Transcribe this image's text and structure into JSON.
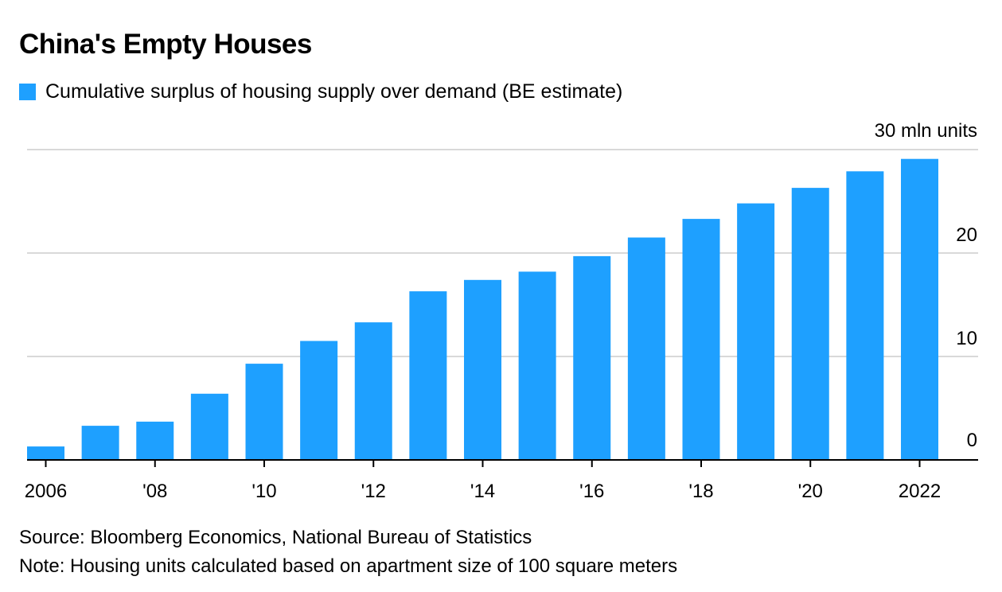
{
  "title": "China's Empty Houses",
  "footer": {
    "source": "Source: Bloomberg Economics, National Bureau of Statistics",
    "note": "Note: Housing units calculated based on apartment size of 100 square meters"
  },
  "colors": {
    "bar": "#1ea0ff",
    "grid": "#d9d9d9",
    "axis": "#000000",
    "text": "#000000"
  },
  "chart_data": {
    "type": "bar",
    "legend": [
      "Cumulative surplus of housing supply over demand (BE estimate)"
    ],
    "legend_position": "top-left",
    "unit_label": "30 mln units",
    "categories": [
      2006,
      2007,
      2008,
      2009,
      2010,
      2011,
      2012,
      2013,
      2014,
      2015,
      2016,
      2017,
      2018,
      2019,
      2020,
      2021,
      2022
    ],
    "series": [
      {
        "name": "Cumulative surplus of housing supply over demand (BE estimate)",
        "values": [
          1.3,
          3.3,
          3.7,
          6.4,
          9.3,
          11.5,
          13.3,
          16.3,
          17.4,
          18.2,
          19.7,
          21.5,
          23.3,
          24.8,
          26.3,
          27.9,
          29.1
        ]
      }
    ],
    "x_tick_labels": [
      {
        "x": 2006,
        "label": "2006"
      },
      {
        "x": 2008,
        "label": "'08"
      },
      {
        "x": 2010,
        "label": "'10"
      },
      {
        "x": 2012,
        "label": "'12"
      },
      {
        "x": 2014,
        "label": "'14"
      },
      {
        "x": 2016,
        "label": "'16"
      },
      {
        "x": 2018,
        "label": "'18"
      },
      {
        "x": 2020,
        "label": "'20"
      },
      {
        "x": 2022,
        "label": "2022"
      }
    ],
    "y_ticks": [
      0,
      10,
      20,
      30
    ],
    "y_tick_labels": [
      "0",
      "10",
      "20",
      "30 mln units"
    ],
    "ylim": [
      0,
      30
    ],
    "y_axis_side": "right",
    "grid": true
  }
}
